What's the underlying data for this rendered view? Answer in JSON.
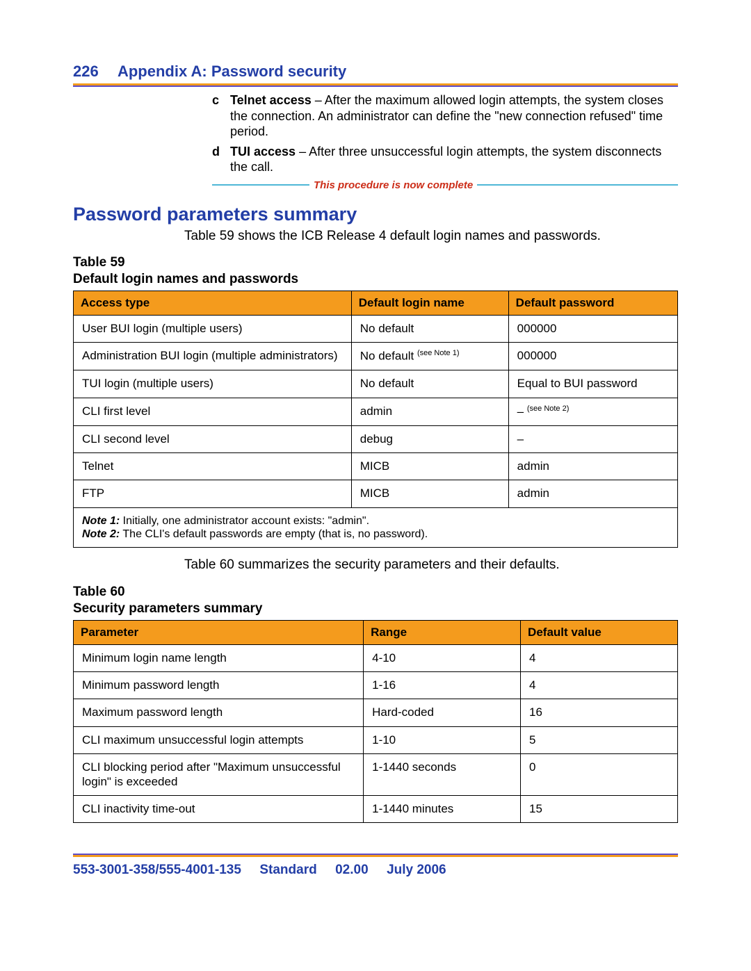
{
  "colors": {
    "heading_blue": "#233ea6",
    "rule_orange": "#f49b1d",
    "rule_purple": "#5f4cc8",
    "rule_teal": "#4eb7d6",
    "complete_red": "#cc2d18",
    "table_header_bg": "#f49b1d",
    "text_black": "#000000",
    "page_bg": "#ffffff"
  },
  "header": {
    "page_number": "226",
    "title": "Appendix A: Password security"
  },
  "list": {
    "items": [
      {
        "letter": "c",
        "bold": "Telnet access",
        "rest": " – After the maximum allowed login attempts, the system closes the connection. An administrator can define the \"new connection refused\" time period."
      },
      {
        "letter": "d",
        "bold": "TUI access",
        "rest": " – After three unsuccessful login attempts, the system disconnects the call."
      }
    ],
    "complete_text": "This procedure is now complete"
  },
  "section": {
    "heading": "Password parameters summary",
    "intro": "Table 59 shows the ICB Release 4 default login names and passwords."
  },
  "table59": {
    "caption_line1": "Table 59",
    "caption_line2": "Default login names and passwords",
    "columns": [
      "Access type",
      "Default login name",
      "Default password"
    ],
    "col_widths": [
      "46%",
      "26%",
      "28%"
    ],
    "rows": [
      {
        "c0": "User BUI login (multiple users)",
        "c1": "No default",
        "c2": "000000"
      },
      {
        "c0": "Administration BUI login (multiple administrators)",
        "c1_prefix": "No default ",
        "c1_sup": "(see Note 1)",
        "c2": "000000"
      },
      {
        "c0": "TUI login (multiple users)",
        "c1": "No default",
        "c2": "Equal to BUI password"
      },
      {
        "c0": "CLI first level",
        "c1": "admin",
        "c2_prefix": "– ",
        "c2_sup": "(see Note 2)"
      },
      {
        "c0": "CLI second level",
        "c1": "debug",
        "c2": "–"
      },
      {
        "c0": "Telnet",
        "c1": "MICB",
        "c2": "admin"
      },
      {
        "c0": "FTP",
        "c1": "MICB",
        "c2": "admin"
      }
    ],
    "notes": [
      {
        "label": "Note 1:",
        "text": "  Initially, one administrator account exists: \"admin\"."
      },
      {
        "label": "Note 2:",
        "text": "  The CLI's default passwords are empty (that is, no password)."
      }
    ]
  },
  "mid_text": "Table 60 summarizes the security parameters and their defaults.",
  "table60": {
    "caption_line1": "Table 60",
    "caption_line2": "Security parameters summary",
    "columns": [
      "Parameter",
      "Range",
      "Default value"
    ],
    "col_widths": [
      "48%",
      "26%",
      "26%"
    ],
    "rows": [
      [
        "Minimum login name length",
        "4-10",
        "4"
      ],
      [
        "Minimum password length",
        "1-16",
        "4"
      ],
      [
        "Maximum password length",
        "Hard-coded",
        "16"
      ],
      [
        "CLI maximum unsuccessful login attempts",
        "1-10",
        "5"
      ],
      [
        "CLI blocking period after \"Maximum unsuccessful login\" is exceeded",
        "1-1440 seconds",
        "0"
      ],
      [
        "CLI inactivity time-out",
        "1-1440 minutes",
        "15"
      ]
    ]
  },
  "footer": {
    "doc_id": "553-3001-358/555-4001-135",
    "standard": "Standard",
    "version": "02.00",
    "date": "July 2006"
  }
}
